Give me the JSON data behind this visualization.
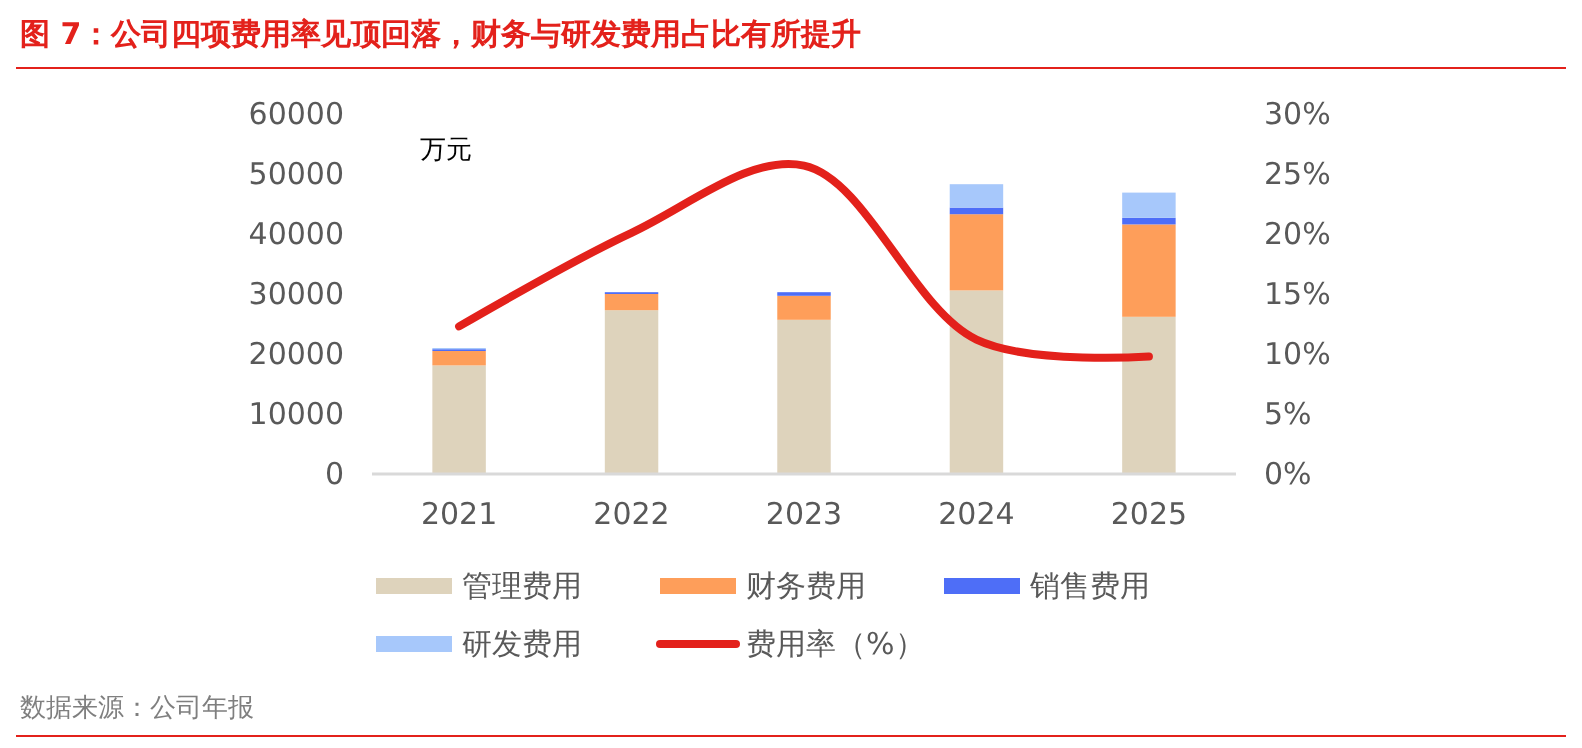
{
  "chart_data": {
    "type": "bar",
    "title": "图 7：公司四项费用率见顶回落，财务与研发费用占比有所提升",
    "ylabel": "万元",
    "categories": [
      "2021",
      "2022",
      "2023",
      "2024",
      "2025"
    ],
    "stacked": true,
    "series": [
      {
        "name": "管理费用",
        "color": "#ded3bc",
        "values": [
          18100,
          27300,
          25700,
          30600,
          26200
        ]
      },
      {
        "name": "财务费用",
        "color": "#fe9e5a",
        "values": [
          2400,
          2700,
          4000,
          12700,
          15400
        ]
      },
      {
        "name": "销售费用",
        "color": "#4e6ef7",
        "values": [
          300,
          300,
          600,
          1100,
          1100
        ]
      },
      {
        "name": "研发费用",
        "color": "#a7c8fb",
        "values": [
          200,
          0,
          0,
          3900,
          4200
        ]
      },
      {
        "name": "费用率（%）",
        "type": "line",
        "axis": "y2",
        "color": "#e3211b",
        "values": [
          12.3,
          20.1,
          25.7,
          11.2,
          9.8
        ]
      }
    ],
    "ylim": [
      0,
      60000
    ],
    "yticks": [
      0,
      10000,
      20000,
      30000,
      40000,
      50000,
      60000
    ],
    "y2lim": [
      0,
      30
    ],
    "y2ticks": [
      {
        "value": 0,
        "label": "0%"
      },
      {
        "value": 5,
        "label": "5%"
      },
      {
        "value": 10,
        "label": "10%"
      },
      {
        "value": 15,
        "label": "15%"
      },
      {
        "value": 20,
        "label": "20%"
      },
      {
        "value": 25,
        "label": "25%"
      },
      {
        "value": 30,
        "label": "30%"
      }
    ],
    "grid": false,
    "legend": "bottom",
    "annotations": [
      "数据来源：公司年报"
    ]
  }
}
